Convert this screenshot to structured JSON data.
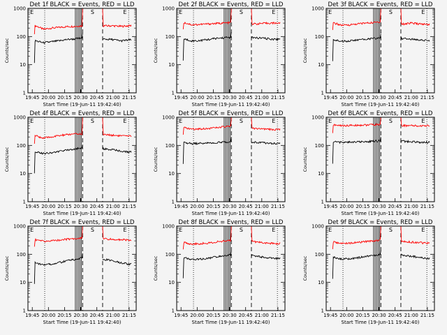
{
  "figure": {
    "background": "#f4f4f4",
    "event_color": "#000000",
    "lld_color": "#ff0000"
  },
  "chart_data": [
    {
      "type": "line",
      "title": "Det 1f BLACK = Events, RED = LLD",
      "xlabel": "Start Time (19-Jun-11 19:42:40)",
      "ylabel": "Counts/sec",
      "xticks": [
        "19:45",
        "20:00",
        "20:15",
        "20:30",
        "20:45",
        "21:00",
        "21:15"
      ],
      "yticks": [
        "1",
        "10",
        "100",
        "1000"
      ],
      "yscale": "log",
      "ylim": [
        1,
        1000
      ],
      "grid": false,
      "legend": "none",
      "markers": [
        "E",
        "S",
        "E"
      ],
      "series": [
        {
          "values": [
            230,
            240,
            180,
            200,
            210,
            225,
            230,
            240,
            250,
            250,
            240,
            240,
            230,
            240,
            250
          ]
        },
        {
          "values": [
            55,
            70,
            60,
            65,
            70,
            78,
            82,
            88,
            90,
            85,
            80,
            78,
            70,
            75,
            78
          ]
        }
      ]
    },
    {
      "type": "line",
      "title": "Det 2f BLACK = Events, RED = LLD",
      "xlabel": "Start Time (19-Jun-11 19:42:40)",
      "ylabel": "Counts/sec",
      "xticks": [
        "19:45",
        "20:00",
        "20:15",
        "20:30",
        "20:45",
        "21:00",
        "21:15"
      ],
      "yticks": [
        "1",
        "10",
        "100",
        "1000"
      ],
      "yscale": "log",
      "ylim": [
        1,
        1000
      ],
      "grid": false,
      "legend": "none",
      "markers": [
        "E",
        "S",
        "E"
      ],
      "series": [
        {
          "values": [
            300,
            310,
            260,
            270,
            280,
            290,
            300,
            310,
            300,
            290,
            280,
            290,
            300,
            300,
            310
          ]
        },
        {
          "values": [
            75,
            80,
            70,
            72,
            78,
            85,
            90,
            95,
            100,
            95,
            90,
            88,
            82,
            80,
            85
          ]
        }
      ]
    },
    {
      "type": "line",
      "title": "Det 3f BLACK = Events, RED = LLD",
      "xlabel": "Start Time (19-Jun-11 19:42:40)",
      "ylabel": "Counts/sec",
      "xticks": [
        "19:45",
        "20:00",
        "20:15",
        "20:30",
        "20:45",
        "21:00",
        "21:15"
      ],
      "yticks": [
        "1",
        "10",
        "100",
        "1000"
      ],
      "yscale": "log",
      "ylim": [
        1,
        1000
      ],
      "grid": false,
      "legend": "none",
      "markers": [
        "E",
        "S",
        "E"
      ],
      "series": [
        {
          "values": [
            280,
            300,
            250,
            260,
            280,
            300,
            310,
            330,
            320,
            300,
            280,
            300,
            280,
            270,
            280
          ]
        },
        {
          "values": [
            70,
            75,
            68,
            70,
            75,
            80,
            85,
            88,
            92,
            88,
            85,
            80,
            78,
            72,
            70
          ]
        }
      ]
    },
    {
      "type": "line",
      "title": "Det 4f BLACK = Events, RED = LLD",
      "xlabel": "Start Time (19-Jun-11 19:42:40)",
      "ylabel": "Counts/sec",
      "xticks": [
        "19:45",
        "20:00",
        "20:15",
        "20:30",
        "20:45",
        "21:00",
        "21:15"
      ],
      "yticks": [
        "1",
        "10",
        "100",
        "1000"
      ],
      "yscale": "log",
      "ylim": [
        1,
        1000
      ],
      "grid": false,
      "legend": "none",
      "markers": [
        "E",
        "S",
        "E"
      ],
      "series": [
        {
          "values": [
            210,
            220,
            180,
            200,
            220,
            240,
            250,
            260,
            270,
            260,
            240,
            230,
            220,
            210,
            220
          ]
        },
        {
          "values": [
            55,
            60,
            52,
            55,
            60,
            68,
            75,
            80,
            85,
            80,
            75,
            70,
            62,
            58,
            60
          ]
        }
      ]
    },
    {
      "type": "line",
      "title": "Det 5f BLACK = Events, RED = LLD",
      "xlabel": "Start Time (19-Jun-11 19:42:40)",
      "ylabel": "Counts/sec",
      "xticks": [
        "19:45",
        "20:00",
        "20:15",
        "20:30",
        "20:45",
        "21:00",
        "21:15"
      ],
      "yticks": [
        "1",
        "10",
        "100",
        "1000"
      ],
      "yscale": "log",
      "ylim": [
        1,
        1000
      ],
      "grid": false,
      "legend": "none",
      "markers": [
        "E",
        "S",
        "E"
      ],
      "series": [
        {
          "values": [
            400,
            420,
            380,
            390,
            400,
            420,
            450,
            470,
            450,
            420,
            400,
            380,
            370,
            360,
            380
          ]
        },
        {
          "values": [
            120,
            125,
            115,
            118,
            120,
            125,
            130,
            140,
            150,
            140,
            130,
            125,
            120,
            115,
            118
          ]
        }
      ]
    },
    {
      "type": "line",
      "title": "Det 6f BLACK = Events, RED = LLD",
      "xlabel": "Start Time (19-Jun-11 19:42:40)",
      "ylabel": "Counts/sec",
      "xticks": [
        "19:45",
        "20:00",
        "20:15",
        "20:30",
        "20:45",
        "21:00",
        "21:15"
      ],
      "yticks": [
        "1",
        "10",
        "100",
        "1000"
      ],
      "yscale": "log",
      "ylim": [
        1,
        1000
      ],
      "grid": false,
      "legend": "none",
      "markers": [
        "E",
        "S",
        "E"
      ],
      "series": [
        {
          "values": [
            520,
            530,
            500,
            510,
            520,
            530,
            540,
            550,
            540,
            520,
            510,
            500,
            490,
            500,
            510
          ]
        },
        {
          "values": [
            130,
            135,
            128,
            130,
            132,
            135,
            140,
            145,
            150,
            145,
            140,
            135,
            130,
            128,
            130
          ]
        }
      ]
    },
    {
      "type": "line",
      "title": "Det 7f BLACK = Events, RED = LLD",
      "xlabel": "Start Time (19-Jun-11 19:42:40)",
      "ylabel": "Counts/sec",
      "xticks": [
        "19:45",
        "20:00",
        "20:15",
        "20:30",
        "20:45",
        "21:00",
        "21:15"
      ],
      "yticks": [
        "1",
        "10",
        "100",
        "1000"
      ],
      "yscale": "log",
      "ylim": [
        1,
        1000
      ],
      "grid": false,
      "legend": "none",
      "markers": [
        "E",
        "S",
        "E"
      ],
      "series": [
        {
          "values": [
            320,
            330,
            290,
            300,
            320,
            340,
            360,
            380,
            390,
            370,
            350,
            340,
            330,
            320,
            330
          ]
        },
        {
          "values": [
            45,
            50,
            42,
            45,
            50,
            58,
            65,
            75,
            80,
            75,
            65,
            58,
            50,
            45,
            48
          ]
        }
      ]
    },
    {
      "type": "line",
      "title": "Det 8f BLACK = Events, RED = LLD",
      "xlabel": "Start Time (19-Jun-11 19:42:40)",
      "ylabel": "Counts/sec",
      "xticks": [
        "19:45",
        "20:00",
        "20:15",
        "20:30",
        "20:45",
        "21:00",
        "21:15"
      ],
      "yticks": [
        "1",
        "10",
        "100",
        "1000"
      ],
      "yscale": "log",
      "ylim": [
        1,
        1000
      ],
      "grid": false,
      "legend": "none",
      "markers": [
        "E",
        "S",
        "E"
      ],
      "series": [
        {
          "values": [
            250,
            260,
            230,
            240,
            250,
            270,
            290,
            310,
            320,
            300,
            280,
            260,
            250,
            240,
            250
          ]
        },
        {
          "values": [
            70,
            75,
            65,
            68,
            72,
            80,
            88,
            95,
            100,
            95,
            88,
            80,
            75,
            70,
            72
          ]
        }
      ]
    },
    {
      "type": "line",
      "title": "Det 9f BLACK = Events, RED = LLD",
      "xlabel": "Start Time (19-Jun-11 19:42:40)",
      "ylabel": "Counts/sec",
      "xticks": [
        "19:45",
        "20:00",
        "20:15",
        "20:30",
        "20:45",
        "21:00",
        "21:15"
      ],
      "yticks": [
        "1",
        "10",
        "100",
        "1000"
      ],
      "yscale": "log",
      "ylim": [
        1,
        1000
      ],
      "grid": false,
      "legend": "none",
      "markers": [
        "E",
        "S",
        "E"
      ],
      "series": [
        {
          "values": [
            260,
            270,
            240,
            250,
            260,
            280,
            300,
            320,
            330,
            310,
            290,
            270,
            260,
            250,
            260
          ]
        },
        {
          "values": [
            70,
            78,
            68,
            70,
            75,
            82,
            90,
            100,
            105,
            100,
            92,
            85,
            78,
            72,
            75
          ]
        }
      ]
    }
  ]
}
